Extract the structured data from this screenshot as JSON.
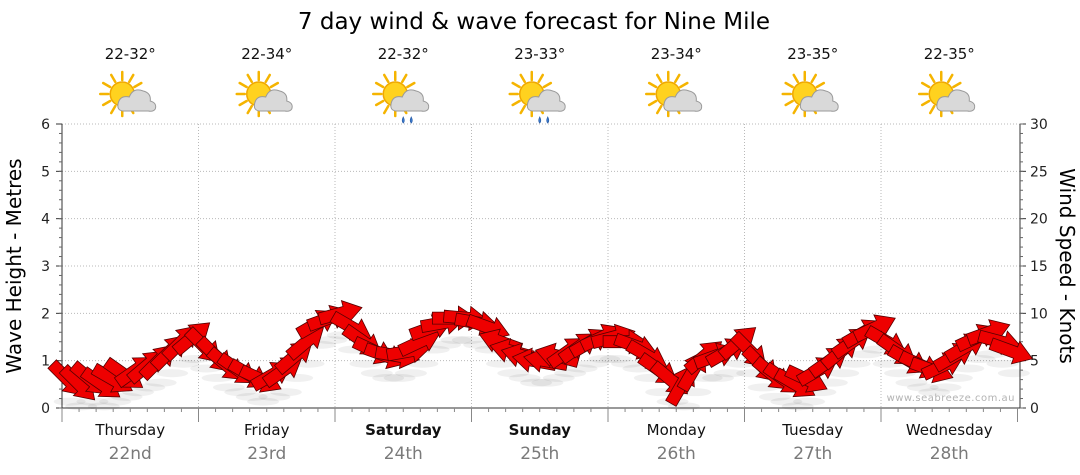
{
  "title": "7 day wind & wave forecast for Nine Mile",
  "watermark": "www.seabreeze.com.au",
  "colors": {
    "arrow_fill": "#ee0000",
    "arrow_stroke": "#550000",
    "date_text": "#7a7a7a"
  },
  "days": [
    {
      "name": "Thursday",
      "date": "22nd",
      "temp": "22-32°",
      "weather_icon": "sun-cloud-icon",
      "bold": false
    },
    {
      "name": "Friday",
      "date": "23rd",
      "temp": "22-34°",
      "weather_icon": "sun-cloud-icon",
      "bold": false
    },
    {
      "name": "Saturday",
      "date": "24th",
      "temp": "22-32°",
      "weather_icon": "sun-cloud-rain-icon",
      "bold": true
    },
    {
      "name": "Sunday",
      "date": "25th",
      "temp": "23-33°",
      "weather_icon": "sun-cloud-rain-icon",
      "bold": true
    },
    {
      "name": "Monday",
      "date": "26th",
      "temp": "23-34°",
      "weather_icon": "sun-cloud-icon",
      "bold": false
    },
    {
      "name": "Tuesday",
      "date": "27th",
      "temp": "23-35°",
      "weather_icon": "sun-cloud-icon",
      "bold": false
    },
    {
      "name": "Wednesday",
      "date": "28th",
      "temp": "22-35°",
      "weather_icon": "sun-cloud-icon",
      "bold": false
    }
  ],
  "chart_data": {
    "type": "scatter",
    "title": "7 day wind & wave forecast for Nine Mile",
    "y_left": {
      "label": "Wave Height - Metres",
      "range": [
        0,
        6
      ],
      "ticks": [
        "0",
        "1",
        "2",
        "3",
        "4",
        "5",
        "6"
      ]
    },
    "y_right": {
      "label": "Wind Speed - Knots",
      "range": [
        0,
        30
      ],
      "ticks": [
        "0",
        "5",
        "10",
        "15",
        "20",
        "25",
        "30"
      ]
    },
    "x_categories": [
      "Thursday 22nd",
      "Friday 23rd",
      "Saturday 24th",
      "Sunday 25th",
      "Monday 26th",
      "Tuesday 27th",
      "Wednesday 28th"
    ],
    "grid": true,
    "series": [
      {
        "name": "wind",
        "marker": "arrow",
        "comment_units": "x = forecast hour from start of Thursday (0-168), y = wind speed in knots, dir = arrow heading in degrees (0 = pointing right, counter-clockwise positive)",
        "points": [
          {
            "x": 1,
            "y": 3,
            "dir": -45
          },
          {
            "x": 3,
            "y": 2.5,
            "dir": -45
          },
          {
            "x": 5,
            "y": 3,
            "dir": -40
          },
          {
            "x": 7,
            "y": 2.5,
            "dir": -35
          },
          {
            "x": 9,
            "y": 3,
            "dir": -30
          },
          {
            "x": 11,
            "y": 3.5,
            "dir": -35
          },
          {
            "x": 13,
            "y": 4,
            "dir": 35
          },
          {
            "x": 15,
            "y": 4.5,
            "dir": 40
          },
          {
            "x": 17,
            "y": 5,
            "dir": 45
          },
          {
            "x": 19,
            "y": 6,
            "dir": 45
          },
          {
            "x": 21,
            "y": 7,
            "dir": 45
          },
          {
            "x": 23,
            "y": 7.5,
            "dir": 40
          },
          {
            "x": 25,
            "y": 6.5,
            "dir": -45
          },
          {
            "x": 27,
            "y": 5.5,
            "dir": -45
          },
          {
            "x": 29,
            "y": 4.5,
            "dir": -40
          },
          {
            "x": 31,
            "y": 4,
            "dir": -35
          },
          {
            "x": 33,
            "y": 3.5,
            "dir": -30
          },
          {
            "x": 35,
            "y": 3,
            "dir": -25
          },
          {
            "x": 37,
            "y": 3.5,
            "dir": 30
          },
          {
            "x": 39,
            "y": 4,
            "dir": 35
          },
          {
            "x": 41,
            "y": 5.5,
            "dir": 40
          },
          {
            "x": 43,
            "y": 7,
            "dir": 40
          },
          {
            "x": 45,
            "y": 9,
            "dir": 30
          },
          {
            "x": 47,
            "y": 9.5,
            "dir": 20
          },
          {
            "x": 49,
            "y": 10,
            "dir": 15
          },
          {
            "x": 51,
            "y": 8.5,
            "dir": -30
          },
          {
            "x": 53,
            "y": 7,
            "dir": -35
          },
          {
            "x": 55,
            "y": 6,
            "dir": -25
          },
          {
            "x": 57,
            "y": 5.5,
            "dir": -20
          },
          {
            "x": 59,
            "y": 5.5,
            "dir": -10
          },
          {
            "x": 61,
            "y": 6,
            "dir": 10
          },
          {
            "x": 63,
            "y": 7,
            "dir": 25
          },
          {
            "x": 65,
            "y": 8.5,
            "dir": 20
          },
          {
            "x": 67,
            "y": 9,
            "dir": 10
          },
          {
            "x": 69,
            "y": 9.5,
            "dir": 0
          },
          {
            "x": 71,
            "y": 9.5,
            "dir": -5
          },
          {
            "x": 73,
            "y": 9,
            "dir": -10
          },
          {
            "x": 75,
            "y": 8.5,
            "dir": -20
          },
          {
            "x": 77,
            "y": 7,
            "dir": 160
          },
          {
            "x": 79,
            "y": 6,
            "dir": 165
          },
          {
            "x": 81,
            "y": 5.5,
            "dir": 165
          },
          {
            "x": 83,
            "y": 5,
            "dir": 170
          },
          {
            "x": 85,
            "y": 5,
            "dir": 170
          },
          {
            "x": 87,
            "y": 5.5,
            "dir": 165
          },
          {
            "x": 89,
            "y": 6,
            "dir": 35
          },
          {
            "x": 91,
            "y": 6.5,
            "dir": 35
          },
          {
            "x": 93,
            "y": 7,
            "dir": 30
          },
          {
            "x": 95,
            "y": 7.5,
            "dir": 25
          },
          {
            "x": 97,
            "y": 7.5,
            "dir": 15
          },
          {
            "x": 99,
            "y": 7,
            "dir": 0
          },
          {
            "x": 101,
            "y": 6.5,
            "dir": -20
          },
          {
            "x": 103,
            "y": 5.5,
            "dir": -30
          },
          {
            "x": 105,
            "y": 4,
            "dir": -35
          },
          {
            "x": 107,
            "y": 3,
            "dir": -40
          },
          {
            "x": 109,
            "y": 2.5,
            "dir": 60
          },
          {
            "x": 111,
            "y": 4,
            "dir": 60
          },
          {
            "x": 113,
            "y": 5.5,
            "dir": 40
          },
          {
            "x": 115,
            "y": 5.5,
            "dir": 20
          },
          {
            "x": 117,
            "y": 6,
            "dir": 30
          },
          {
            "x": 119,
            "y": 7,
            "dir": 40
          },
          {
            "x": 121,
            "y": 6,
            "dir": -45
          },
          {
            "x": 123,
            "y": 4.5,
            "dir": -45
          },
          {
            "x": 125,
            "y": 3.5,
            "dir": -40
          },
          {
            "x": 127,
            "y": 3,
            "dir": -35
          },
          {
            "x": 129,
            "y": 2.5,
            "dir": -30
          },
          {
            "x": 131,
            "y": 3,
            "dir": -25
          },
          {
            "x": 133,
            "y": 4,
            "dir": 30
          },
          {
            "x": 135,
            "y": 5,
            "dir": 35
          },
          {
            "x": 137,
            "y": 6,
            "dir": 40
          },
          {
            "x": 139,
            "y": 7,
            "dir": 35
          },
          {
            "x": 141,
            "y": 8,
            "dir": 30
          },
          {
            "x": 143,
            "y": 8.5,
            "dir": 25
          },
          {
            "x": 145,
            "y": 7,
            "dir": -30
          },
          {
            "x": 147,
            "y": 6,
            "dir": -35
          },
          {
            "x": 149,
            "y": 5,
            "dir": -30
          },
          {
            "x": 151,
            "y": 4.5,
            "dir": -25
          },
          {
            "x": 153,
            "y": 4,
            "dir": -20
          },
          {
            "x": 155,
            "y": 4.5,
            "dir": 25
          },
          {
            "x": 157,
            "y": 5.5,
            "dir": 30
          },
          {
            "x": 159,
            "y": 6.5,
            "dir": 30
          },
          {
            "x": 161,
            "y": 7.5,
            "dir": 25
          },
          {
            "x": 163,
            "y": 8,
            "dir": 20
          },
          {
            "x": 165,
            "y": 7,
            "dir": -15
          },
          {
            "x": 167,
            "y": 6,
            "dir": -20
          }
        ]
      }
    ]
  }
}
